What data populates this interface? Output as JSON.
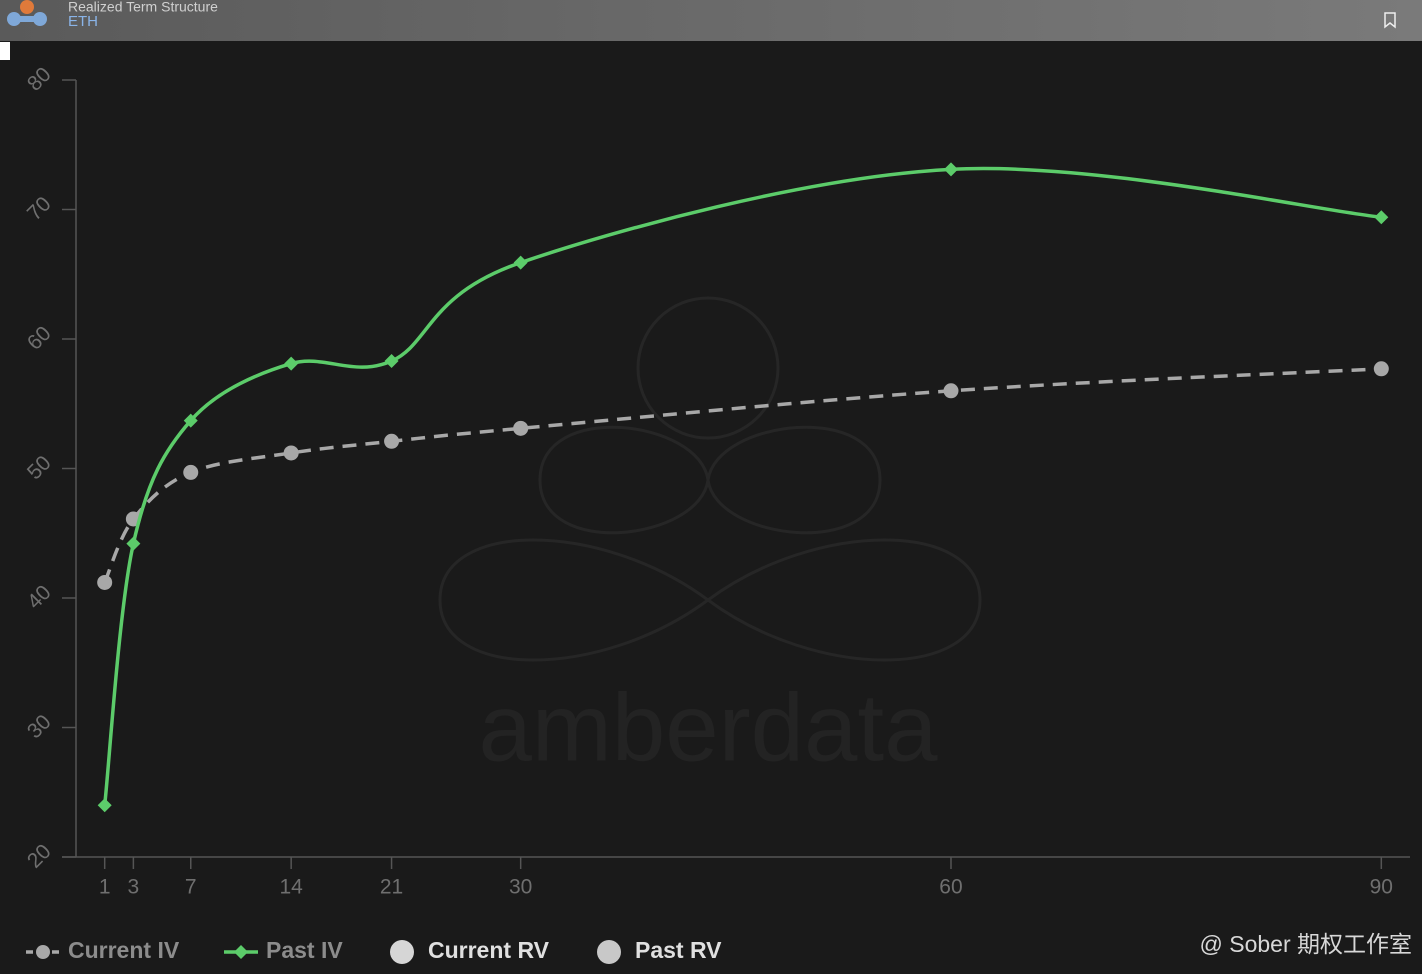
{
  "chart_data": {
    "type": "line",
    "title": "Realized Term Structure",
    "subtitle": "ETH",
    "watermark": "amberdata",
    "credit": "@ Sober 期权工作室",
    "x": [
      1,
      3,
      7,
      14,
      21,
      30,
      60,
      90
    ],
    "xlim": [
      -1,
      92
    ],
    "xticks": [
      1,
      3,
      7,
      14,
      21,
      30,
      60,
      90
    ],
    "ylim": [
      20,
      80
    ],
    "yticks": [
      20,
      30,
      40,
      50,
      60,
      70,
      80
    ],
    "series": [
      {
        "name": "Current IV",
        "color": "#a8a8a8",
        "values": [
          41.2,
          46.1,
          49.7,
          51.2,
          52.1,
          53.1,
          56.0,
          57.7
        ]
      },
      {
        "name": "Past IV",
        "color": "#5ccc6a",
        "values": [
          24.0,
          44.2,
          53.7,
          58.1,
          58.3,
          65.9,
          73.1,
          69.4
        ]
      },
      {
        "name": "Current RV",
        "color": "#d6d6d6",
        "values": [
          null,
          null,
          null,
          null,
          null,
          null,
          null,
          null
        ]
      },
      {
        "name": "Past RV",
        "color": "#c8c8c8",
        "values": [
          null,
          null,
          null,
          null,
          null,
          null,
          null,
          null
        ]
      }
    ]
  }
}
